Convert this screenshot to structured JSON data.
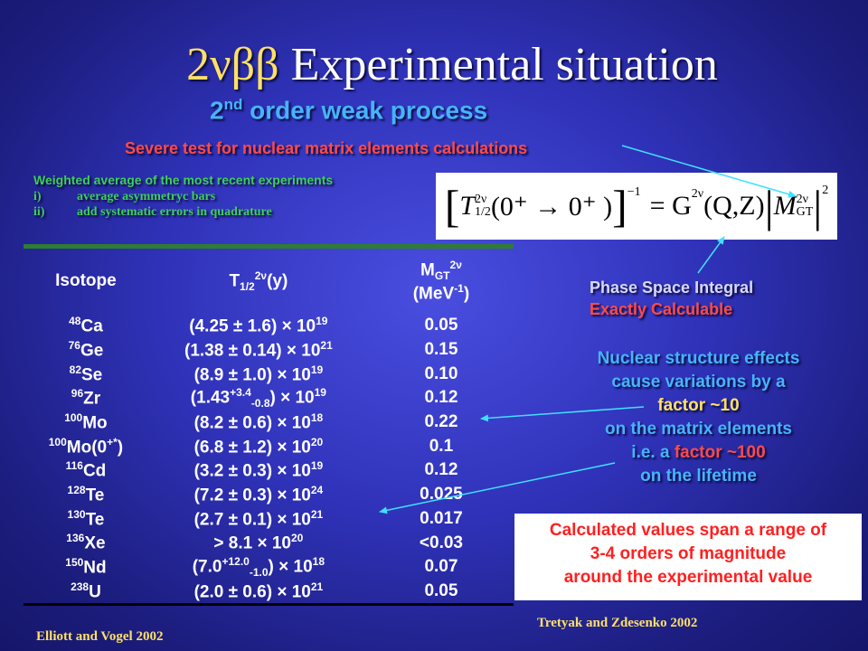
{
  "title": {
    "greek": "2νββ",
    "text": " Experimental situation"
  },
  "subtitle": {
    "base": "2",
    "sup": "nd",
    "rest": " order weak process"
  },
  "severe_test": "Severe test for nuclear matrix elements calculations",
  "weighted": {
    "heading": "Weighted average of the most recent experiments",
    "items": [
      {
        "num": "i)",
        "text": "average asymmetryc bars"
      },
      {
        "num": "ii)",
        "text": "add systematic errors in quadrature"
      }
    ]
  },
  "formula": {
    "T": "T",
    "T_sub": "1/2",
    "T_sup": "2ν",
    "inner": "(0⁺ → 0⁺ )",
    "inv": "−1",
    "eq": "= G",
    "G_sup": "2ν",
    "G_args": "(Q,Z)",
    "M": "M",
    "M_sub": "GT",
    "M_sup": "2ν",
    "sq": "2"
  },
  "table": {
    "headers": {
      "isotope": "Isotope",
      "t_base": "T",
      "t_sub": "1/2",
      "t_sup": "2ν",
      "t_unit": "(y)",
      "m_base": "M",
      "m_sub": "GT",
      "m_sup": "2ν",
      "m_unit_a": "(MeV",
      "m_unit_sup": "-1",
      "m_unit_b": ")"
    },
    "rows": [
      {
        "mass": "48",
        "el": "Ca",
        "val": "(4.25 ± 1.6)",
        "exp": "19",
        "m": "0.05"
      },
      {
        "mass": "76",
        "el": "Ge",
        "val": "(1.38 ± 0.14)",
        "exp": "21",
        "m": "0.15"
      },
      {
        "mass": "82",
        "el": "Se",
        "val": "(8.9 ± 1.0)",
        "exp": "19",
        "m": "0.10"
      },
      {
        "mass": "96",
        "el": "Zr",
        "val": "(1.43",
        "up": "+3.4",
        "down": "-0.8",
        "val_end": ")",
        "exp": "19",
        "m": "0.12"
      },
      {
        "mass": "100",
        "el": "Mo",
        "val": "(8.2 ± 0.6)",
        "exp": "18",
        "m": "0.22"
      },
      {
        "mass": "100",
        "el": "Mo(0",
        "el_sup": "+*",
        "el_end": ")",
        "val": "(6.8 ± 1.2)",
        "exp": "20",
        "m": "0.1"
      },
      {
        "mass": "116",
        "el": "Cd",
        "val": "(3.2 ± 0.3)",
        "exp": "19",
        "m": "0.12"
      },
      {
        "mass": "128",
        "el": "Te",
        "val": "(7.2 ± 0.3)",
        "exp": "24",
        "m": "0.025"
      },
      {
        "mass": "130",
        "el": "Te",
        "val": "(2.7 ± 0.1)",
        "exp": "21",
        "m": "0.017"
      },
      {
        "mass": "136",
        "el": "Xe",
        "val": "> 8.1",
        "exp": "20",
        "m": "<0.03"
      },
      {
        "mass": "150",
        "el": "Nd",
        "val": "(7.0",
        "up": "+12.0",
        "down": "-1.0",
        "val_end": ")",
        "exp": "18",
        "m": "0.07"
      },
      {
        "mass": "238",
        "el": "U",
        "val": "(2.0 ± 0.6)",
        "exp": "21",
        "m": "0.05"
      }
    ],
    "times": "× 10"
  },
  "phase_space": {
    "line1": "Phase Space Integral",
    "line2": "Exactly Calculable"
  },
  "nuclear": {
    "l1": "Nuclear structure effects",
    "l2": "cause variations by a",
    "l3": "factor ~10",
    "l4": "on the matrix elements",
    "l5a": "i.e. a ",
    "l5b": "factor ~100",
    "l6": "on the lifetime"
  },
  "calculated": {
    "l1": "Calculated values span a range of",
    "l2": "3-4 orders of magnitude",
    "l3": "around the experimental value"
  },
  "refs": {
    "left": "Elliott and Vogel 2002",
    "right": "Tretyak and Zdesenko 2002"
  },
  "colors": {
    "arrow": "#40e0ff",
    "rule": "#2e7d32"
  }
}
